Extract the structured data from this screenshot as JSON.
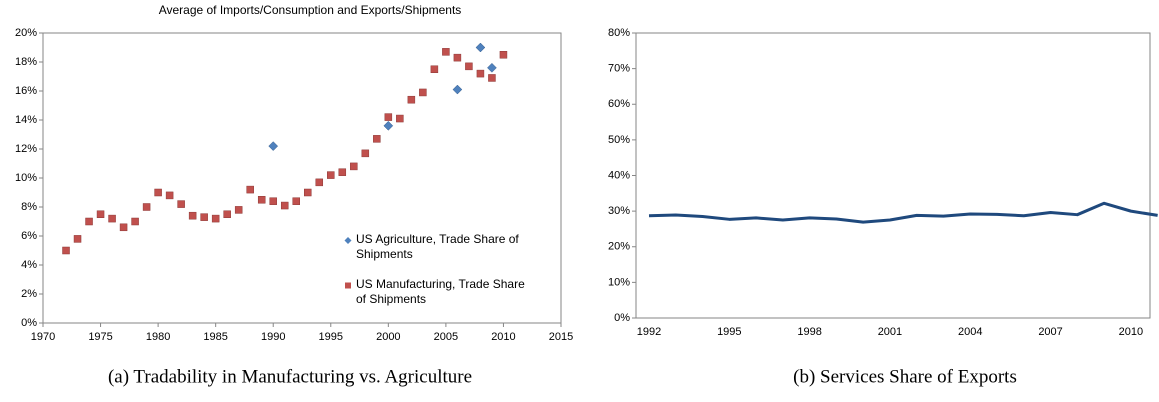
{
  "chart_data": [
    {
      "type": "scatter",
      "title": "Average of Imports/Consumption and Exports/Shipments",
      "caption": "(a) Tradability in Manufacturing vs. Agriculture",
      "xlim": [
        1970,
        2015
      ],
      "xticks": [
        1970,
        1975,
        1980,
        1985,
        1990,
        1995,
        2000,
        2005,
        2010,
        2015
      ],
      "ylim": [
        0,
        20
      ],
      "yticks": [
        {
          "value": 0,
          "label": "0%"
        },
        {
          "value": 2,
          "label": "2%"
        },
        {
          "value": 4,
          "label": "4%"
        },
        {
          "value": 6,
          "label": "6%"
        },
        {
          "value": 8,
          "label": "8%"
        },
        {
          "value": 10,
          "label": "10%"
        },
        {
          "value": 12,
          "label": "12%"
        },
        {
          "value": 14,
          "label": "14%"
        },
        {
          "value": 16,
          "label": "16%"
        },
        {
          "value": 18,
          "label": "18%"
        },
        {
          "value": 20,
          "label": "20%"
        }
      ],
      "series": [
        {
          "name": "US Agriculture, Trade Share of Shipments",
          "color": "#4f81bd",
          "marker": "diamond",
          "x": [
            1990,
            2000,
            2006,
            2008,
            2009
          ],
          "values": [
            12.2,
            13.6,
            16.1,
            19.0,
            17.6
          ]
        },
        {
          "name": "US Manufacturing, Trade Share of Shipments",
          "color": "#c0504d",
          "marker": "square",
          "x": [
            1972,
            1973,
            1974,
            1975,
            1976,
            1977,
            1978,
            1979,
            1980,
            1981,
            1982,
            1983,
            1984,
            1985,
            1986,
            1987,
            1988,
            1989,
            1990,
            1991,
            1992,
            1993,
            1994,
            1995,
            1996,
            1997,
            1998,
            1999,
            2000,
            2001,
            2002,
            2003,
            2004,
            2005,
            2006,
            2007,
            2008,
            2009,
            2010
          ],
          "values": [
            5.0,
            5.8,
            7.0,
            7.5,
            7.2,
            6.6,
            7.0,
            8.0,
            9.0,
            8.8,
            8.2,
            7.4,
            7.3,
            7.2,
            7.5,
            7.8,
            9.2,
            8.5,
            8.4,
            8.1,
            8.4,
            9.0,
            9.7,
            10.2,
            10.4,
            10.8,
            11.7,
            12.7,
            14.2,
            14.1,
            15.4,
            15.9,
            17.5,
            18.7,
            18.3,
            17.7,
            17.2,
            16.9,
            18.5
          ]
        }
      ]
    },
    {
      "type": "line",
      "caption": "(b) Services Share of Exports",
      "categories": [
        1992,
        null,
        null,
        1995,
        null,
        null,
        1998,
        null,
        null,
        2001,
        null,
        null,
        2004,
        null,
        null,
        2007,
        null,
        null,
        2010,
        null
      ],
      "ylim": [
        0,
        80
      ],
      "yticks": [
        {
          "value": 0,
          "label": "0%"
        },
        {
          "value": 10,
          "label": "10%"
        },
        {
          "value": 20,
          "label": "20%"
        },
        {
          "value": 30,
          "label": "30%"
        },
        {
          "value": 40,
          "label": "40%"
        },
        {
          "value": 50,
          "label": "50%"
        },
        {
          "value": 60,
          "label": "60%"
        },
        {
          "value": 70,
          "label": "70%"
        },
        {
          "value": 80,
          "label": "80%"
        }
      ],
      "series": [
        {
          "color": "#1f497d",
          "values": [
            28.7,
            28.9,
            28.5,
            27.7,
            28.1,
            27.5,
            28.1,
            27.8,
            26.9,
            27.5,
            28.8,
            28.6,
            29.2,
            29.1,
            28.7,
            29.6,
            29.0,
            32.2,
            30.0,
            28.8
          ]
        }
      ]
    }
  ]
}
